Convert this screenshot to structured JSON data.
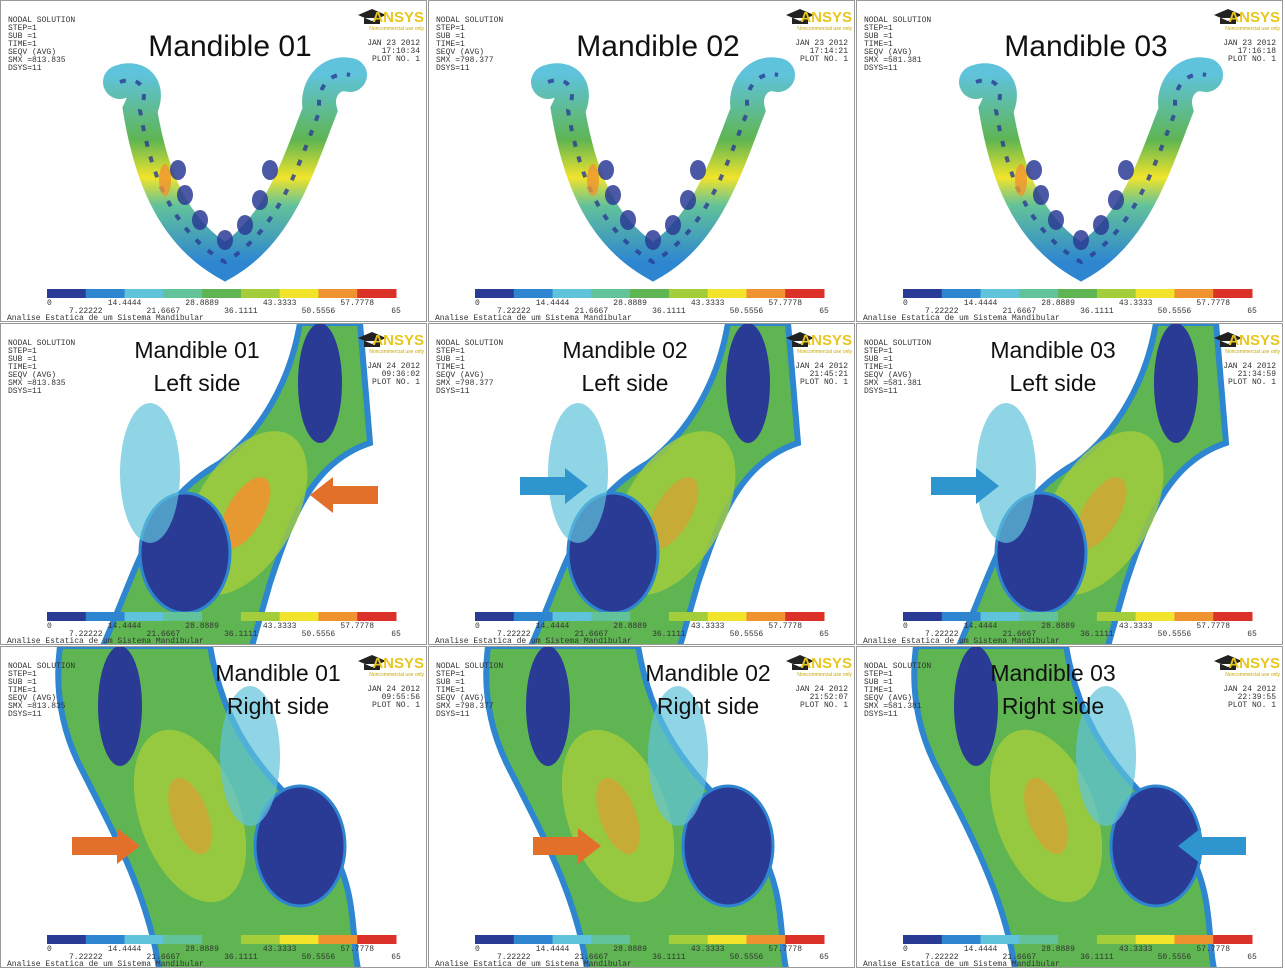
{
  "solution_lines": [
    "NODAL SOLUTION",
    "STEP=1",
    "SUB =1",
    "TIME=1",
    "SEQV      (AVG)"
  ],
  "dsys": "DSYS=11",
  "plot_no": "PLOT NO.   1",
  "footer": "Analise Estatica de um Sistema Mandibular",
  "logo": {
    "brand": "ANSYS",
    "note": "Noncommercial use only"
  },
  "legend": {
    "labels": [
      "0",
      "7.22222",
      "14.4444",
      "21.6667",
      "28.8889",
      "36.1111",
      "43.3333",
      "50.5556",
      "57.7778",
      "65"
    ],
    "colors": [
      "#2a3b95",
      "#2e86d0",
      "#5fc3dc",
      "#62c29a",
      "#5fb552",
      "#a4cd3c",
      "#f1e42b",
      "#ef9330",
      "#db3128"
    ]
  },
  "panels": [
    {
      "title": [
        "Mandible 01"
      ],
      "date": "JAN 23 2012",
      "time": "17:10:34",
      "smx": "SMX =813.835"
    },
    {
      "title": [
        "Mandible 02"
      ],
      "date": "JAN 23 2012",
      "time": "17:14:21",
      "smx": "SMX =798.377"
    },
    {
      "title": [
        "Mandible 03"
      ],
      "date": "JAN 23 2012",
      "time": "17:16:18",
      "smx": "SMX =581.381"
    },
    {
      "title": [
        "Mandible 01",
        "Left side"
      ],
      "date": "JAN 24 2012",
      "time": "09:36:02",
      "smx": "SMX =813.835"
    },
    {
      "title": [
        "Mandible 02",
        "Left side"
      ],
      "date": "JAN 24 2012",
      "time": "21:45:21",
      "smx": "SMX =798.377"
    },
    {
      "title": [
        "Mandible 03",
        "Left side"
      ],
      "date": "JAN 24 2012",
      "time": "21:34:59",
      "smx": "SMX =581.381"
    },
    {
      "title": [
        "Mandible 01",
        "Right side"
      ],
      "date": "JAN 24 2012",
      "time": "09:55:56",
      "smx": "SMX =813.835"
    },
    {
      "title": [
        "Mandible 02",
        "Right side"
      ],
      "date": "JAN 24 2012",
      "time": "21:52:07",
      "smx": "SMX =798.377"
    },
    {
      "title": [
        "Mandible 03",
        "Right side"
      ],
      "date": "JAN 24 2012",
      "time": "22:39:55",
      "smx": "SMX =581.381"
    }
  ]
}
